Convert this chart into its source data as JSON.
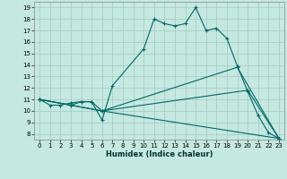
{
  "xlabel": "Humidex (Indice chaleur)",
  "bg_color": "#c5e8e0",
  "grid_color": "#a8cfc8",
  "line_color": "#006868",
  "xlim": [
    -0.5,
    23.5
  ],
  "ylim": [
    7.5,
    19.5
  ],
  "xticks": [
    0,
    1,
    2,
    3,
    4,
    5,
    6,
    7,
    8,
    9,
    10,
    11,
    12,
    13,
    14,
    15,
    16,
    17,
    18,
    19,
    20,
    21,
    22,
    23
  ],
  "yticks": [
    8,
    9,
    10,
    11,
    12,
    13,
    14,
    15,
    16,
    17,
    18,
    19
  ],
  "line1_x": [
    0,
    1,
    2,
    3,
    4,
    5,
    6,
    7,
    10,
    11,
    12,
    13,
    14,
    15,
    16,
    17,
    18,
    19,
    20,
    21,
    22,
    23
  ],
  "line1_y": [
    11,
    10.5,
    10.5,
    10.7,
    10.8,
    10.8,
    9.2,
    12.2,
    15.4,
    18.0,
    17.6,
    17.4,
    17.6,
    19.0,
    17.0,
    17.2,
    16.3,
    13.9,
    11.7,
    9.6,
    8.1,
    7.6
  ],
  "line2_x": [
    0,
    3,
    4,
    5,
    6,
    23
  ],
  "line2_y": [
    11,
    10.5,
    10.8,
    10.8,
    10.0,
    7.6
  ],
  "line3_x": [
    0,
    6,
    19,
    23
  ],
  "line3_y": [
    11,
    10.0,
    13.8,
    7.6
  ],
  "line4_x": [
    0,
    6,
    20,
    23
  ],
  "line4_y": [
    11,
    10.0,
    11.8,
    7.6
  ]
}
